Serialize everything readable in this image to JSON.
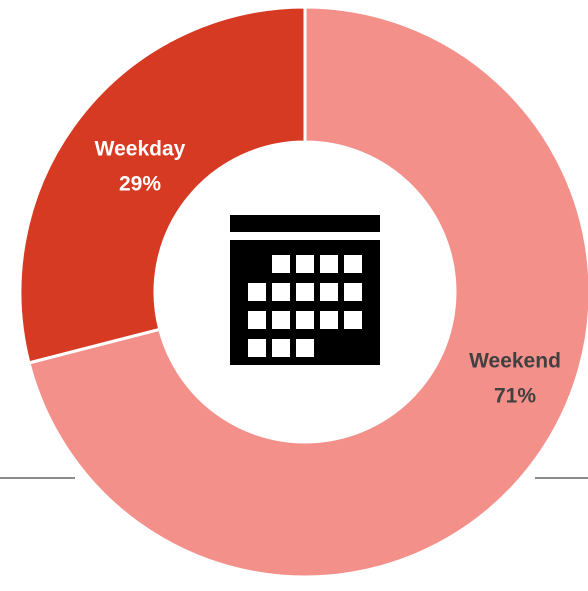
{
  "chart_data": {
    "type": "donut",
    "categories": [
      "Weekend",
      "Weekday"
    ],
    "values": [
      71,
      29
    ],
    "value_labels": [
      "71%",
      "29%"
    ],
    "colors": [
      "#f4908a",
      "#d63a22"
    ]
  }
}
